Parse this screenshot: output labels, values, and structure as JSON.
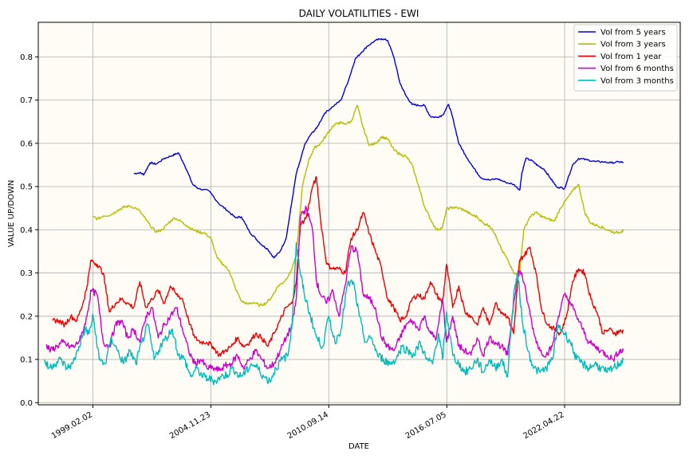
{
  "chart_data": {
    "type": "line",
    "title": "DAILY VOLATILITIES - EWI",
    "xlabel": "DATE",
    "ylabel": "VALUE UP/DOWN",
    "xlim": [
      1996.4,
      2028.0
    ],
    "ylim": [
      -0.005,
      0.88
    ],
    "grid": true,
    "legend_position": "top-right",
    "colors": {
      "plot_bg": "#fffcf5",
      "grid": "#b0b0b0"
    },
    "x_ticks": [
      {
        "x": 1999.09,
        "label": "1999.02.02"
      },
      {
        "x": 2004.9,
        "label": "2004.11.23"
      },
      {
        "x": 2010.7,
        "label": "2010.09.14"
      },
      {
        "x": 2016.51,
        "label": "2016.07.05"
      },
      {
        "x": 2022.31,
        "label": "2022.04.22"
      }
    ],
    "y_ticks": [
      0.0,
      0.1,
      0.2,
      0.3,
      0.4,
      0.5,
      0.6,
      0.7,
      0.8
    ],
    "y_tick_labels": [
      "0.0",
      "0.1",
      "0.2",
      "0.3",
      "0.4",
      "0.5",
      "0.6",
      "0.7",
      "0.8"
    ],
    "series": [
      {
        "name": "Vol from 5 years",
        "color": "#0000dd",
        "x": [
          2001.1,
          2001.4,
          2001.6,
          2001.9,
          2002.2,
          2002.6,
          2003.0,
          2003.3,
          2003.6,
          2004.0,
          2004.3,
          2004.8,
          2005.3,
          2005.7,
          2006.1,
          2006.4,
          2006.8,
          2007.1,
          2007.4,
          2007.7,
          2008.0,
          2008.3,
          2008.6,
          2008.9,
          2009.1,
          2009.3,
          2009.5,
          2009.8,
          2010.1,
          2010.5,
          2010.9,
          2011.3,
          2011.7,
          2012.0,
          2012.3,
          2012.6,
          2013.0,
          2013.3,
          2013.6,
          2013.9,
          2014.2,
          2014.5,
          2014.8,
          2015.1,
          2015.4,
          2015.7,
          2016.0,
          2016.3,
          2016.6,
          2016.8,
          2017.1,
          2017.4,
          2017.8,
          2018.2,
          2018.6,
          2019.0,
          2019.4,
          2019.8,
          2020.1,
          2020.2,
          2020.4,
          2020.7,
          2021.0,
          2021.3,
          2021.6,
          2021.9,
          2022.3,
          2022.7,
          2023.0,
          2023.4,
          2023.8,
          2024.2,
          2024.6,
          2025.0,
          2025.2
        ],
        "y": [
          0.53,
          0.532,
          0.528,
          0.555,
          0.552,
          0.565,
          0.572,
          0.578,
          0.55,
          0.505,
          0.495,
          0.49,
          0.46,
          0.445,
          0.428,
          0.43,
          0.395,
          0.38,
          0.365,
          0.355,
          0.335,
          0.35,
          0.38,
          0.47,
          0.53,
          0.56,
          0.595,
          0.62,
          0.635,
          0.67,
          0.685,
          0.7,
          0.75,
          0.795,
          0.81,
          0.825,
          0.838,
          0.842,
          0.838,
          0.8,
          0.74,
          0.71,
          0.69,
          0.688,
          0.688,
          0.662,
          0.66,
          0.665,
          0.69,
          0.66,
          0.6,
          0.575,
          0.545,
          0.52,
          0.515,
          0.518,
          0.51,
          0.505,
          0.492,
          0.53,
          0.565,
          0.56,
          0.548,
          0.54,
          0.52,
          0.5,
          0.495,
          0.55,
          0.565,
          0.562,
          0.558,
          0.557,
          0.555,
          0.557,
          0.556
        ]
      },
      {
        "name": "Vol from 3 years",
        "color": "#bbbb00",
        "x": [
          1999.1,
          1999.3,
          1999.6,
          2000.0,
          2000.3,
          2000.6,
          2000.9,
          2001.3,
          2001.6,
          2001.9,
          2002.2,
          2002.5,
          2002.8,
          2003.1,
          2003.4,
          2003.7,
          2004.0,
          2004.3,
          2004.6,
          2004.9,
          2005.2,
          2005.5,
          2005.8,
          2006.1,
          2006.4,
          2006.7,
          2007.0,
          2007.3,
          2007.6,
          2007.9,
          2008.2,
          2008.5,
          2008.8,
          2009.1,
          2009.4,
          2009.7,
          2010.0,
          2010.3,
          2010.6,
          2010.9,
          2011.2,
          2011.5,
          2011.8,
          2012.1,
          2012.4,
          2012.7,
          2013.0,
          2013.3,
          2013.6,
          2013.9,
          2014.2,
          2014.5,
          2014.8,
          2015.1,
          2015.4,
          2015.7,
          2016.0,
          2016.3,
          2016.5,
          2016.8,
          2017.1,
          2017.4,
          2017.7,
          2018.0,
          2018.3,
          2018.6,
          2018.9,
          2019.2,
          2019.5,
          2019.8,
          2020.0,
          2020.1,
          2020.3,
          2020.6,
          2020.9,
          2021.2,
          2021.5,
          2021.8,
          2022.1,
          2022.4,
          2022.7,
          2023.0,
          2023.3,
          2023.6,
          2023.9,
          2024.2,
          2024.5,
          2024.8,
          2025.1,
          2025.2
        ],
        "y": [
          0.43,
          0.425,
          0.432,
          0.435,
          0.445,
          0.452,
          0.455,
          0.448,
          0.43,
          0.41,
          0.395,
          0.4,
          0.415,
          0.428,
          0.42,
          0.41,
          0.4,
          0.395,
          0.392,
          0.38,
          0.335,
          0.32,
          0.305,
          0.265,
          0.235,
          0.228,
          0.232,
          0.225,
          0.23,
          0.245,
          0.27,
          0.28,
          0.3,
          0.34,
          0.5,
          0.56,
          0.59,
          0.6,
          0.62,
          0.64,
          0.648,
          0.645,
          0.65,
          0.688,
          0.635,
          0.595,
          0.6,
          0.615,
          0.61,
          0.585,
          0.575,
          0.57,
          0.55,
          0.505,
          0.455,
          0.425,
          0.4,
          0.405,
          0.448,
          0.452,
          0.45,
          0.445,
          0.435,
          0.43,
          0.415,
          0.41,
          0.39,
          0.355,
          0.33,
          0.3,
          0.295,
          0.305,
          0.4,
          0.43,
          0.44,
          0.43,
          0.425,
          0.42,
          0.45,
          0.47,
          0.49,
          0.505,
          0.44,
          0.415,
          0.41,
          0.405,
          0.398,
          0.393,
          0.396,
          0.397
        ]
      },
      {
        "name": "Vol from 1 year",
        "color": "#ee0000",
        "x": [
          1997.1,
          1997.4,
          1997.7,
          1998.0,
          1998.3,
          1998.6,
          1998.8,
          1999.0,
          1999.3,
          1999.6,
          1999.9,
          2000.2,
          2000.5,
          2000.8,
          2001.1,
          2001.4,
          2001.7,
          2002.0,
          2002.3,
          2002.6,
          2002.9,
          2003.2,
          2003.5,
          2003.8,
          2004.1,
          2004.4,
          2004.7,
          2005.0,
          2005.3,
          2005.6,
          2005.9,
          2006.2,
          2006.5,
          2006.8,
          2007.1,
          2007.4,
          2007.7,
          2008.0,
          2008.3,
          2008.6,
          2008.9,
          2009.1,
          2009.3,
          2009.6,
          2009.9,
          2010.1,
          2010.3,
          2010.6,
          2010.9,
          2011.2,
          2011.5,
          2011.8,
          2012.1,
          2012.4,
          2012.7,
          2013.0,
          2013.3,
          2013.6,
          2013.9,
          2014.2,
          2014.5,
          2014.8,
          2015.1,
          2015.4,
          2015.7,
          2016.0,
          2016.3,
          2016.5,
          2016.8,
          2017.1,
          2017.4,
          2017.7,
          2018.0,
          2018.3,
          2018.6,
          2018.9,
          2019.2,
          2019.5,
          2019.8,
          2020.0,
          2020.1,
          2020.3,
          2020.6,
          2020.9,
          2021.2,
          2021.5,
          2021.8,
          2022.1,
          2022.4,
          2022.7,
          2023.0,
          2023.3,
          2023.6,
          2023.9,
          2024.2,
          2024.5,
          2024.8,
          2025.0,
          2025.2
        ],
        "y": [
          0.19,
          0.19,
          0.18,
          0.2,
          0.19,
          0.23,
          0.27,
          0.33,
          0.32,
          0.3,
          0.21,
          0.23,
          0.24,
          0.23,
          0.22,
          0.28,
          0.22,
          0.24,
          0.26,
          0.23,
          0.27,
          0.25,
          0.24,
          0.19,
          0.15,
          0.14,
          0.14,
          0.13,
          0.11,
          0.12,
          0.13,
          0.15,
          0.13,
          0.14,
          0.16,
          0.15,
          0.13,
          0.16,
          0.19,
          0.22,
          0.23,
          0.28,
          0.41,
          0.43,
          0.5,
          0.52,
          0.42,
          0.32,
          0.31,
          0.31,
          0.3,
          0.38,
          0.4,
          0.44,
          0.39,
          0.35,
          0.31,
          0.24,
          0.22,
          0.19,
          0.2,
          0.24,
          0.25,
          0.24,
          0.28,
          0.25,
          0.23,
          0.32,
          0.22,
          0.27,
          0.21,
          0.2,
          0.18,
          0.22,
          0.18,
          0.23,
          0.21,
          0.2,
          0.16,
          0.28,
          0.33,
          0.34,
          0.36,
          0.3,
          0.21,
          0.18,
          0.17,
          0.16,
          0.2,
          0.28,
          0.31,
          0.3,
          0.24,
          0.21,
          0.16,
          0.17,
          0.16,
          0.165,
          0.165
        ]
      },
      {
        "name": "Vol from 6 months",
        "color": "#cc00cc",
        "x": [
          1996.8,
          1997.0,
          1997.3,
          1997.6,
          1997.9,
          1998.2,
          1998.5,
          1998.8,
          1999.0,
          1999.3,
          1999.6,
          1999.9,
          2000.2,
          2000.5,
          2000.8,
          2001.1,
          2001.4,
          2001.7,
          2002.0,
          2002.3,
          2002.6,
          2002.9,
          2003.2,
          2003.5,
          2003.8,
          2004.1,
          2004.4,
          2004.7,
          2005.0,
          2005.3,
          2005.6,
          2005.9,
          2006.2,
          2006.5,
          2006.8,
          2007.1,
          2007.4,
          2007.7,
          2008.0,
          2008.3,
          2008.6,
          2008.9,
          2009.1,
          2009.3,
          2009.6,
          2009.9,
          2010.1,
          2010.3,
          2010.6,
          2010.9,
          2011.2,
          2011.5,
          2011.8,
          2012.1,
          2012.4,
          2012.7,
          2013.0,
          2013.3,
          2013.6,
          2013.9,
          2014.2,
          2014.5,
          2014.8,
          2015.1,
          2015.4,
          2015.7,
          2016.0,
          2016.3,
          2016.5,
          2016.8,
          2017.1,
          2017.4,
          2017.7,
          2018.0,
          2018.3,
          2018.6,
          2018.9,
          2019.2,
          2019.5,
          2019.8,
          2020.0,
          2020.2,
          2020.5,
          2020.8,
          2021.1,
          2021.4,
          2021.7,
          2022.0,
          2022.3,
          2022.6,
          2022.9,
          2023.2,
          2023.5,
          2023.8,
          2024.1,
          2024.4,
          2024.7,
          2025.0,
          2025.2
        ],
        "y": [
          0.135,
          0.12,
          0.13,
          0.14,
          0.13,
          0.13,
          0.15,
          0.2,
          0.26,
          0.25,
          0.14,
          0.13,
          0.18,
          0.19,
          0.15,
          0.17,
          0.14,
          0.2,
          0.22,
          0.15,
          0.18,
          0.2,
          0.22,
          0.17,
          0.12,
          0.09,
          0.1,
          0.08,
          0.08,
          0.075,
          0.085,
          0.09,
          0.11,
          0.08,
          0.1,
          0.12,
          0.1,
          0.08,
          0.09,
          0.12,
          0.15,
          0.18,
          0.24,
          0.43,
          0.45,
          0.4,
          0.28,
          0.25,
          0.23,
          0.26,
          0.2,
          0.27,
          0.36,
          0.35,
          0.25,
          0.24,
          0.22,
          0.15,
          0.13,
          0.12,
          0.15,
          0.18,
          0.19,
          0.17,
          0.2,
          0.16,
          0.15,
          0.24,
          0.14,
          0.2,
          0.13,
          0.12,
          0.11,
          0.15,
          0.11,
          0.15,
          0.14,
          0.13,
          0.11,
          0.23,
          0.3,
          0.3,
          0.23,
          0.16,
          0.12,
          0.11,
          0.13,
          0.2,
          0.25,
          0.23,
          0.2,
          0.17,
          0.14,
          0.13,
          0.12,
          0.11,
          0.1,
          0.12,
          0.12
        ]
      },
      {
        "name": "Vol from 3 months",
        "color": "#00bbbb",
        "x": [
          1996.7,
          1996.9,
          1997.2,
          1997.5,
          1997.8,
          1998.1,
          1998.4,
          1998.7,
          1998.9,
          1999.1,
          1999.4,
          1999.7,
          2000.0,
          2000.3,
          2000.6,
          2000.9,
          2001.2,
          2001.5,
          2001.8,
          2002.1,
          2002.4,
          2002.7,
          2003.0,
          2003.3,
          2003.6,
          2003.9,
          2004.2,
          2004.5,
          2004.8,
          2005.1,
          2005.4,
          2005.7,
          2006.0,
          2006.3,
          2006.6,
          2006.9,
          2007.2,
          2007.5,
          2007.8,
          2008.1,
          2008.4,
          2008.7,
          2008.9,
          2009.1,
          2009.3,
          2009.5,
          2009.8,
          2010.1,
          2010.4,
          2010.7,
          2011.0,
          2011.3,
          2011.6,
          2011.9,
          2012.2,
          2012.5,
          2012.8,
          2013.1,
          2013.4,
          2013.7,
          2014.0,
          2014.3,
          2014.6,
          2014.9,
          2015.2,
          2015.5,
          2015.8,
          2016.1,
          2016.3,
          2016.5,
          2016.8,
          2017.1,
          2017.4,
          2017.7,
          2018.0,
          2018.3,
          2018.6,
          2018.9,
          2019.2,
          2019.5,
          2019.8,
          2020.0,
          2020.2,
          2020.5,
          2020.8,
          2021.1,
          2021.4,
          2021.7,
          2022.0,
          2022.3,
          2022.6,
          2022.9,
          2023.2,
          2023.5,
          2023.8,
          2024.1,
          2024.4,
          2024.7,
          2025.0,
          2025.2
        ],
        "y": [
          0.1,
          0.08,
          0.09,
          0.1,
          0.08,
          0.09,
          0.13,
          0.17,
          0.16,
          0.2,
          0.1,
          0.09,
          0.15,
          0.12,
          0.09,
          0.12,
          0.09,
          0.14,
          0.18,
          0.1,
          0.13,
          0.15,
          0.17,
          0.11,
          0.1,
          0.06,
          0.08,
          0.06,
          0.055,
          0.05,
          0.06,
          0.065,
          0.08,
          0.06,
          0.07,
          0.09,
          0.08,
          0.06,
          0.05,
          0.08,
          0.1,
          0.11,
          0.19,
          0.37,
          0.3,
          0.25,
          0.2,
          0.15,
          0.13,
          0.2,
          0.14,
          0.17,
          0.27,
          0.28,
          0.2,
          0.14,
          0.15,
          0.11,
          0.1,
          0.09,
          0.1,
          0.13,
          0.12,
          0.11,
          0.14,
          0.1,
          0.09,
          0.16,
          0.1,
          0.21,
          0.11,
          0.09,
          0.07,
          0.08,
          0.1,
          0.07,
          0.1,
          0.08,
          0.1,
          0.06,
          0.25,
          0.3,
          0.2,
          0.12,
          0.08,
          0.07,
          0.08,
          0.1,
          0.18,
          0.16,
          0.14,
          0.1,
          0.09,
          0.08,
          0.09,
          0.08,
          0.07,
          0.08,
          0.09,
          0.1
        ]
      }
    ]
  }
}
